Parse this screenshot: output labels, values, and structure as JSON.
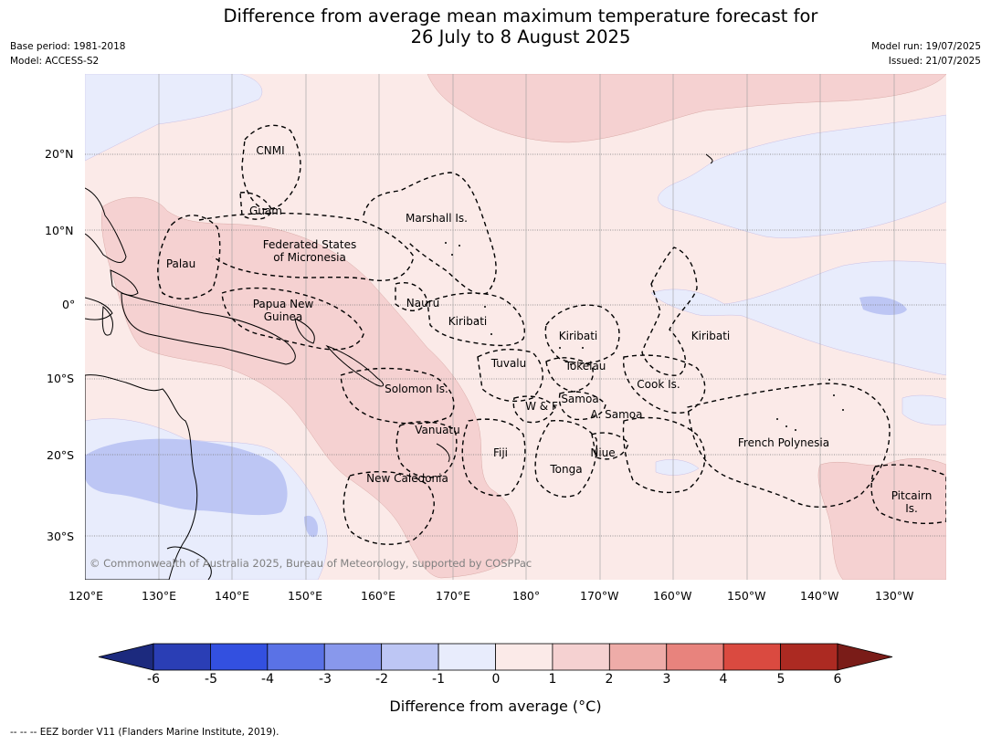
{
  "header": {
    "title_line1": "Difference from average mean maximum temperature forecast for",
    "title_line2": "26 July to 8 August 2025",
    "base_period": "Base period: 1981-2018",
    "model": "Model: ACCESS-S2",
    "model_run": "Model run: 19/07/2025",
    "issued": "Issued: 21/07/2025"
  },
  "map": {
    "lat_labels": [
      "20°N",
      "10°N",
      "0°",
      "10°S",
      "20°S",
      "30°S"
    ],
    "lon_labels": [
      "120°E",
      "130°E",
      "140°E",
      "150°E",
      "160°E",
      "170°E",
      "180°",
      "170°W",
      "160°W",
      "150°W",
      "140°W",
      "130°W"
    ],
    "places": [
      {
        "name": "CNMI"
      },
      {
        "name": "Guam"
      },
      {
        "name": "Marshall Is."
      },
      {
        "name": "Federated States"
      },
      {
        "name": "of Micronesia"
      },
      {
        "name": "Palau"
      },
      {
        "name": "Papua New"
      },
      {
        "name": "Guinea"
      },
      {
        "name": "Nauru"
      },
      {
        "name": "Kiribati"
      },
      {
        "name": "Kiribati"
      },
      {
        "name": "Kiribati"
      },
      {
        "name": "Tuvalu"
      },
      {
        "name": "Tokelau"
      },
      {
        "name": "Cook Is."
      },
      {
        "name": "Solomon Is."
      },
      {
        "name": "Samoa"
      },
      {
        "name": "W & F"
      },
      {
        "name": "A. Samoa"
      },
      {
        "name": "Vanuatu"
      },
      {
        "name": "Fiji"
      },
      {
        "name": "Niue"
      },
      {
        "name": "French Polynesia"
      },
      {
        "name": "Tonga"
      },
      {
        "name": "New Caledonia"
      },
      {
        "name": "Pitcairn"
      },
      {
        "name": "Is."
      }
    ],
    "copyright": "© Commonwealth of Australia 2025, Bureau of Meteorology, supported by COSPPac"
  },
  "colorbar": {
    "ticks": [
      "-6",
      "-5",
      "-4",
      "-3",
      "-2",
      "-1",
      "0",
      "1",
      "2",
      "3",
      "4",
      "5",
      "6"
    ],
    "colors": [
      "#1c2a7e",
      "#2a3eb5",
      "#3350e0",
      "#5a72e6",
      "#8898ec",
      "#bdc6f4",
      "#e8ecfc",
      "#fbeae8",
      "#f5d1d1",
      "#eeaca8",
      "#e8837d",
      "#da4a40",
      "#ac2a22",
      "#7a1c18"
    ],
    "title": "Difference from average (°C)"
  },
  "footnote": "--  --  -- EEZ border V11 (Flanders Marine Institute, 2019)."
}
